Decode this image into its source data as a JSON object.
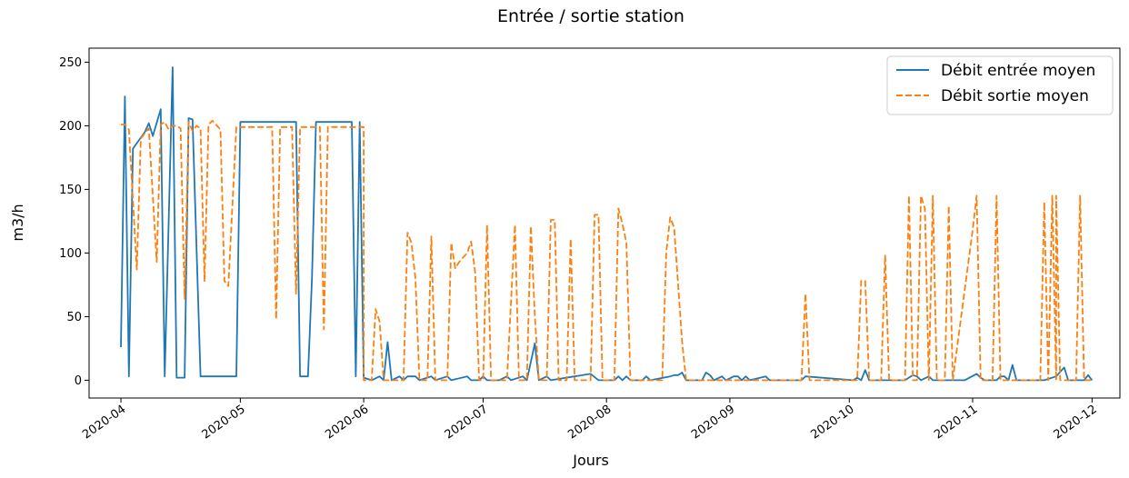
{
  "chart_data": {
    "type": "line",
    "title": "Entrée / sortie station",
    "xlabel": "Jours",
    "ylabel": "m3/h",
    "xlim": [
      "2020-03-24",
      "2020-12-08"
    ],
    "ylim": [
      -14,
      261
    ],
    "x_ticks": [
      "2020-04",
      "2020-05",
      "2020-06",
      "2020-07",
      "2020-08",
      "2020-09",
      "2020-10",
      "2020-11",
      "2020-12"
    ],
    "y_ticks": [
      0,
      50,
      100,
      150,
      200,
      250
    ],
    "grid": false,
    "legend_position": "top-right",
    "series": [
      {
        "name": "Débit entrée moyen",
        "color": "#1f77b4",
        "style": "solid",
        "points": [
          [
            "2020-04-01",
            26
          ],
          [
            "2020-04-02",
            223
          ],
          [
            "2020-04-03",
            3
          ],
          [
            "2020-04-04",
            182
          ],
          [
            "2020-04-07",
            195
          ],
          [
            "2020-04-08",
            202
          ],
          [
            "2020-04-09",
            192
          ],
          [
            "2020-04-11",
            213
          ],
          [
            "2020-04-12",
            3
          ],
          [
            "2020-04-14",
            246
          ],
          [
            "2020-04-15",
            2
          ],
          [
            "2020-04-17",
            2
          ],
          [
            "2020-04-18",
            206
          ],
          [
            "2020-04-19",
            205
          ],
          [
            "2020-04-21",
            3
          ],
          [
            "2020-04-30",
            3
          ],
          [
            "2020-05-01",
            203
          ],
          [
            "2020-05-15",
            203
          ],
          [
            "2020-05-16",
            3
          ],
          [
            "2020-05-18",
            3
          ],
          [
            "2020-05-19",
            80
          ],
          [
            "2020-05-20",
            203
          ],
          [
            "2020-05-29",
            203
          ],
          [
            "2020-05-30",
            3
          ],
          [
            "2020-05-31",
            203
          ],
          [
            "2020-06-01",
            2
          ],
          [
            "2020-06-03",
            0
          ],
          [
            "2020-06-05",
            3
          ],
          [
            "2020-06-06",
            0
          ],
          [
            "2020-06-07",
            30
          ],
          [
            "2020-06-08",
            0
          ],
          [
            "2020-06-10",
            3
          ],
          [
            "2020-06-11",
            0
          ],
          [
            "2020-06-12",
            3
          ],
          [
            "2020-06-14",
            3
          ],
          [
            "2020-06-15",
            0
          ],
          [
            "2020-06-18",
            3
          ],
          [
            "2020-06-19",
            0
          ],
          [
            "2020-06-22",
            3
          ],
          [
            "2020-06-23",
            0
          ],
          [
            "2020-06-27",
            3
          ],
          [
            "2020-06-28",
            0
          ],
          [
            "2020-06-30",
            0
          ],
          [
            "2020-07-01",
            3
          ],
          [
            "2020-07-02",
            0
          ],
          [
            "2020-07-05",
            0
          ],
          [
            "2020-07-07",
            3
          ],
          [
            "2020-07-08",
            0
          ],
          [
            "2020-07-11",
            3
          ],
          [
            "2020-07-12",
            0
          ],
          [
            "2020-07-14",
            29
          ],
          [
            "2020-07-15",
            0
          ],
          [
            "2020-07-17",
            3
          ],
          [
            "2020-07-18",
            0
          ],
          [
            "2020-07-28",
            5
          ],
          [
            "2020-07-30",
            0
          ],
          [
            "2020-08-03",
            0
          ],
          [
            "2020-08-04",
            3
          ],
          [
            "2020-08-05",
            0
          ],
          [
            "2020-08-06",
            3
          ],
          [
            "2020-08-07",
            0
          ],
          [
            "2020-08-10",
            0
          ],
          [
            "2020-08-11",
            3
          ],
          [
            "2020-08-12",
            0
          ],
          [
            "2020-08-17",
            3
          ],
          [
            "2020-08-18",
            4
          ],
          [
            "2020-08-19",
            4
          ],
          [
            "2020-08-20",
            6
          ],
          [
            "2020-08-21",
            0
          ],
          [
            "2020-08-25",
            0
          ],
          [
            "2020-08-26",
            6
          ],
          [
            "2020-08-27",
            4
          ],
          [
            "2020-08-28",
            0
          ],
          [
            "2020-08-30",
            3
          ],
          [
            "2020-08-31",
            0
          ],
          [
            "2020-09-02",
            3
          ],
          [
            "2020-09-03",
            3
          ],
          [
            "2020-09-04",
            0
          ],
          [
            "2020-09-05",
            3
          ],
          [
            "2020-09-06",
            0
          ],
          [
            "2020-09-10",
            3
          ],
          [
            "2020-09-11",
            0
          ],
          [
            "2020-09-19",
            0
          ],
          [
            "2020-09-20",
            3
          ],
          [
            "2020-10-02",
            0
          ],
          [
            "2020-10-03",
            2
          ],
          [
            "2020-10-04",
            0
          ],
          [
            "2020-10-05",
            8
          ],
          [
            "2020-10-06",
            0
          ],
          [
            "2020-10-15",
            0
          ],
          [
            "2020-10-17",
            4
          ],
          [
            "2020-10-18",
            3
          ],
          [
            "2020-10-19",
            0
          ],
          [
            "2020-10-21",
            3
          ],
          [
            "2020-10-22",
            0
          ],
          [
            "2020-10-27",
            0
          ],
          [
            "2020-10-30",
            0
          ],
          [
            "2020-11-02",
            5
          ],
          [
            "2020-11-03",
            2
          ],
          [
            "2020-11-04",
            0
          ],
          [
            "2020-11-07",
            0
          ],
          [
            "2020-11-08",
            3
          ],
          [
            "2020-11-09",
            3
          ],
          [
            "2020-11-10",
            0
          ],
          [
            "2020-11-11",
            12
          ],
          [
            "2020-11-12",
            0
          ],
          [
            "2020-11-19",
            0
          ],
          [
            "2020-11-20",
            1
          ],
          [
            "2020-11-22",
            3
          ],
          [
            "2020-11-24",
            10
          ],
          [
            "2020-11-25",
            0
          ],
          [
            "2020-11-29",
            0
          ],
          [
            "2020-11-30",
            4
          ],
          [
            "2020-12-01",
            0
          ]
        ]
      },
      {
        "name": "Débit sortie moyen",
        "color": "#ff7f0e",
        "style": "dashed",
        "points": [
          [
            "2020-04-01",
            201
          ],
          [
            "2020-04-02",
            201
          ],
          [
            "2020-04-03",
            197
          ],
          [
            "2020-04-05",
            87
          ],
          [
            "2020-04-06",
            190
          ],
          [
            "2020-04-08",
            198
          ],
          [
            "2020-04-10",
            93
          ],
          [
            "2020-04-11",
            201
          ],
          [
            "2020-04-12",
            203
          ],
          [
            "2020-04-13",
            197
          ],
          [
            "2020-04-14",
            200
          ],
          [
            "2020-04-15",
            200
          ],
          [
            "2020-04-16",
            198
          ],
          [
            "2020-04-17",
            64
          ],
          [
            "2020-04-18",
            203
          ],
          [
            "2020-04-19",
            196
          ],
          [
            "2020-04-20",
            200
          ],
          [
            "2020-04-21",
            198
          ],
          [
            "2020-04-22",
            78
          ],
          [
            "2020-04-23",
            201
          ],
          [
            "2020-04-24",
            204
          ],
          [
            "2020-04-26",
            197
          ],
          [
            "2020-04-27",
            78
          ],
          [
            "2020-04-28",
            74
          ],
          [
            "2020-04-30",
            199
          ],
          [
            "2020-05-09",
            199
          ],
          [
            "2020-05-10",
            48
          ],
          [
            "2020-05-11",
            199
          ],
          [
            "2020-05-14",
            199
          ],
          [
            "2020-05-15",
            68
          ],
          [
            "2020-05-16",
            199
          ],
          [
            "2020-05-21",
            199
          ],
          [
            "2020-05-22",
            40
          ],
          [
            "2020-05-23",
            199
          ],
          [
            "2020-06-01",
            199
          ],
          [
            "2020-06-01",
            0
          ],
          [
            "2020-06-03",
            0
          ],
          [
            "2020-06-04",
            56
          ],
          [
            "2020-06-05",
            46
          ],
          [
            "2020-06-06",
            0
          ],
          [
            "2020-06-11",
            0
          ],
          [
            "2020-06-12",
            116
          ],
          [
            "2020-06-13",
            108
          ],
          [
            "2020-06-14",
            80
          ],
          [
            "2020-06-15",
            0
          ],
          [
            "2020-06-17",
            0
          ],
          [
            "2020-06-18",
            113
          ],
          [
            "2020-06-19",
            0
          ],
          [
            "2020-06-22",
            0
          ],
          [
            "2020-06-23",
            108
          ],
          [
            "2020-06-24",
            88
          ],
          [
            "2020-06-25",
            93
          ],
          [
            "2020-06-27",
            100
          ],
          [
            "2020-06-28",
            109
          ],
          [
            "2020-06-29",
            85
          ],
          [
            "2020-06-30",
            0
          ],
          [
            "2020-07-01",
            0
          ],
          [
            "2020-07-02",
            122
          ],
          [
            "2020-07-03",
            0
          ],
          [
            "2020-07-07",
            0
          ],
          [
            "2020-07-09",
            122
          ],
          [
            "2020-07-10",
            0
          ],
          [
            "2020-07-12",
            0
          ],
          [
            "2020-07-13",
            121
          ],
          [
            "2020-07-14",
            50
          ],
          [
            "2020-07-15",
            0
          ],
          [
            "2020-07-17",
            0
          ],
          [
            "2020-07-18",
            126
          ],
          [
            "2020-07-19",
            126
          ],
          [
            "2020-07-20",
            0
          ],
          [
            "2020-07-22",
            0
          ],
          [
            "2020-07-23",
            111
          ],
          [
            "2020-07-24",
            0
          ],
          [
            "2020-07-28",
            0
          ],
          [
            "2020-07-29",
            130
          ],
          [
            "2020-07-30",
            130
          ],
          [
            "2020-07-31",
            0
          ],
          [
            "2020-08-03",
            0
          ],
          [
            "2020-08-04",
            135
          ],
          [
            "2020-08-05",
            123
          ],
          [
            "2020-08-06",
            108
          ],
          [
            "2020-08-07",
            0
          ],
          [
            "2020-08-15",
            0
          ],
          [
            "2020-08-16",
            100
          ],
          [
            "2020-08-17",
            128
          ],
          [
            "2020-08-18",
            120
          ],
          [
            "2020-08-20",
            30
          ],
          [
            "2020-08-21",
            0
          ],
          [
            "2020-09-19",
            0
          ],
          [
            "2020-09-20",
            68
          ],
          [
            "2020-09-21",
            0
          ],
          [
            "2020-10-03",
            0
          ],
          [
            "2020-10-04",
            78
          ],
          [
            "2020-10-05",
            78
          ],
          [
            "2020-10-06",
            0
          ],
          [
            "2020-10-09",
            0
          ],
          [
            "2020-10-10",
            98
          ],
          [
            "2020-10-11",
            0
          ],
          [
            "2020-10-15",
            0
          ],
          [
            "2020-10-16",
            145
          ],
          [
            "2020-10-17",
            0
          ],
          [
            "2020-10-18",
            0
          ],
          [
            "2020-10-19",
            145
          ],
          [
            "2020-10-20",
            135
          ],
          [
            "2020-10-21",
            0
          ],
          [
            "2020-10-22",
            145
          ],
          [
            "2020-10-23",
            0
          ],
          [
            "2020-10-25",
            0
          ],
          [
            "2020-10-26",
            137
          ],
          [
            "2020-10-27",
            0
          ],
          [
            "2020-11-01",
            118
          ],
          [
            "2020-11-02",
            145
          ],
          [
            "2020-11-03",
            0
          ],
          [
            "2020-11-06",
            0
          ],
          [
            "2020-11-07",
            145
          ],
          [
            "2020-11-08",
            0
          ],
          [
            "2020-11-18",
            0
          ],
          [
            "2020-11-19",
            140
          ],
          [
            "2020-11-20",
            0
          ],
          [
            "2020-11-21",
            145
          ],
          [
            "2020-11-22",
            0
          ],
          [
            "2020-11-22",
            145
          ],
          [
            "2020-11-23",
            0
          ],
          [
            "2020-11-27",
            0
          ],
          [
            "2020-11-28",
            145
          ],
          [
            "2020-11-29",
            0
          ],
          [
            "2020-12-01",
            0
          ]
        ]
      }
    ]
  }
}
